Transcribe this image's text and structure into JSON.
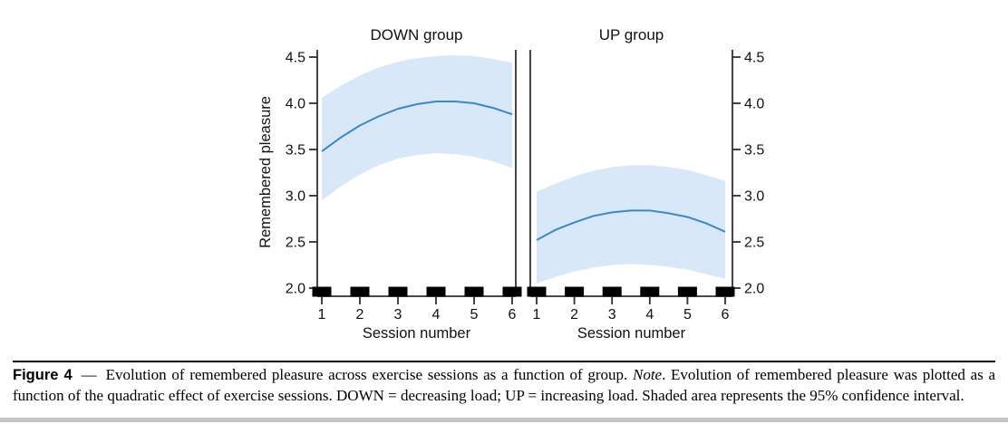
{
  "caption": {
    "label": "Figure 4",
    "dash": "—",
    "text_before_note": "Evolution of remembered pleasure across exercise sessions as a function of group. ",
    "note_label": "Note",
    "text_after_note": ". Evolution of remembered pleasure was plotted as a function of the quadratic effect of exercise sessions. DOWN = decreasing load; UP = increasing load. Shaded area represents the 95% confidence interval."
  },
  "style": {
    "line_color": "#3c87c4",
    "band_color": "#d9e8f8",
    "axis_color": "#2f2f2f",
    "marker_color": "#000000",
    "text_color": "#111111"
  },
  "chart_data": [
    {
      "type": "line",
      "panel_id": "down",
      "title": "DOWN group",
      "xlabel": "Session number",
      "ylabel": "Remembered pleasure",
      "legend": "none",
      "grid": false,
      "xlim": [
        0.9,
        6.1
      ],
      "ylim": [
        1.9,
        4.6
      ],
      "x_ticks": [
        1,
        2,
        3,
        4,
        5,
        6
      ],
      "y_ticks": [
        {
          "v": 2.0,
          "label": "2.0"
        },
        {
          "v": 2.5,
          "label": "2.5"
        },
        {
          "v": 3.0,
          "label": "3.0"
        },
        {
          "v": 3.5,
          "label": "3.5"
        },
        {
          "v": 4.0,
          "label": "4.0"
        },
        {
          "v": 4.5,
          "label": "4.5"
        }
      ],
      "axis_side": "left",
      "x": [
        1,
        1.5,
        2,
        2.5,
        3,
        3.5,
        4,
        4.5,
        5,
        5.5,
        6
      ],
      "line": [
        3.48,
        3.63,
        3.76,
        3.86,
        3.94,
        3.99,
        4.02,
        4.02,
        4.0,
        3.95,
        3.88
      ],
      "ci_upper": [
        4.06,
        4.19,
        4.3,
        4.39,
        4.45,
        4.49,
        4.51,
        4.52,
        4.51,
        4.48,
        4.44
      ],
      "ci_lower": [
        2.95,
        3.1,
        3.23,
        3.33,
        3.4,
        3.44,
        3.46,
        3.45,
        3.42,
        3.37,
        3.3
      ],
      "rug_sessions": [
        1,
        2,
        3,
        4,
        5,
        6
      ],
      "ci_meaning": "95% confidence interval"
    },
    {
      "type": "line",
      "panel_id": "up",
      "title": "UP group",
      "xlabel": "Session number",
      "ylabel": "Remembered pleasure",
      "legend": "none",
      "grid": false,
      "xlim": [
        0.9,
        6.1
      ],
      "ylim": [
        1.9,
        4.6
      ],
      "x_ticks": [
        1,
        2,
        3,
        4,
        5,
        6
      ],
      "y_ticks": [
        {
          "v": 2.0,
          "label": "2.0"
        },
        {
          "v": 2.5,
          "label": "2.5"
        },
        {
          "v": 3.0,
          "label": "3.0"
        },
        {
          "v": 3.5,
          "label": "3.5"
        },
        {
          "v": 4.0,
          "label": "4.0"
        },
        {
          "v": 4.5,
          "label": "4.5"
        }
      ],
      "axis_side": "right",
      "x": [
        1,
        1.5,
        2,
        2.5,
        3,
        3.5,
        4,
        4.5,
        5,
        5.5,
        6
      ],
      "line": [
        2.52,
        2.63,
        2.71,
        2.78,
        2.82,
        2.84,
        2.84,
        2.81,
        2.77,
        2.7,
        2.61
      ],
      "ci_upper": [
        3.04,
        3.13,
        3.21,
        3.27,
        3.31,
        3.33,
        3.33,
        3.31,
        3.28,
        3.22,
        3.16
      ],
      "ci_lower": [
        2.05,
        2.12,
        2.18,
        2.22,
        2.25,
        2.26,
        2.25,
        2.23,
        2.2,
        2.15,
        2.1
      ],
      "rug_sessions": [
        1,
        2,
        3,
        4,
        5,
        6
      ],
      "ci_meaning": "95% confidence interval"
    }
  ]
}
